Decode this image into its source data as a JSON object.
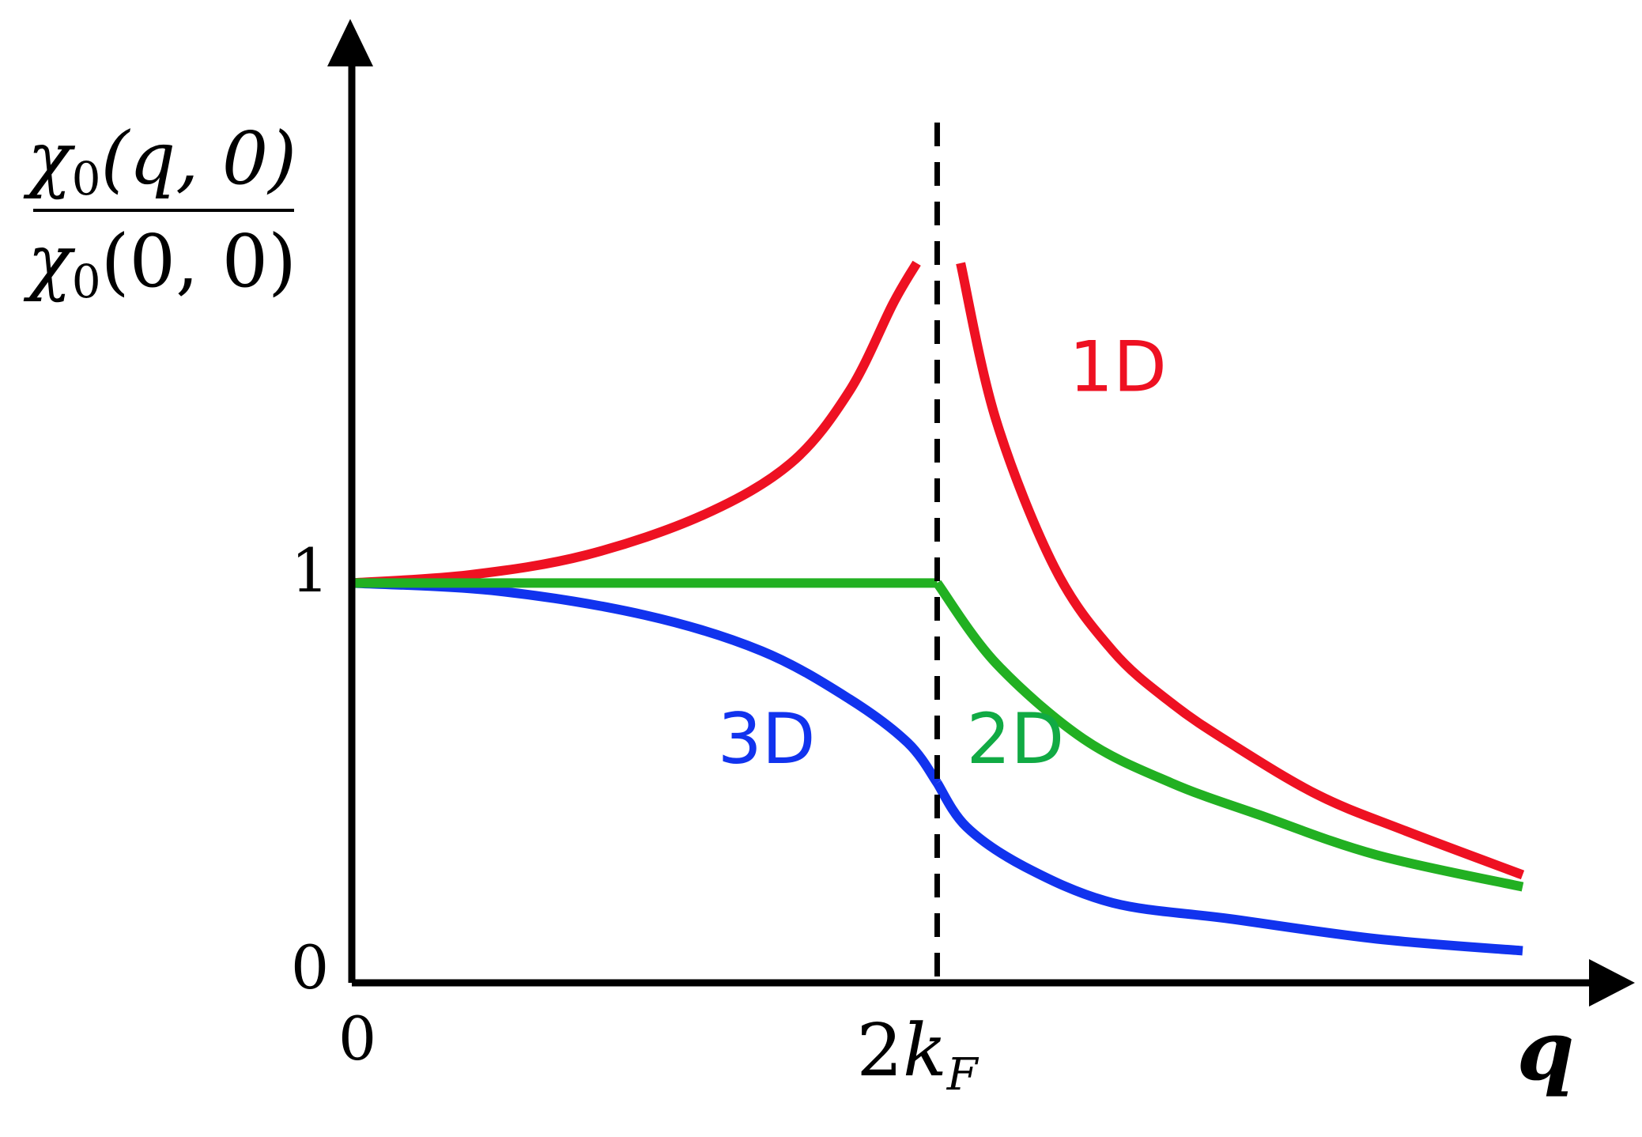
{
  "chart_data": {
    "type": "line",
    "title": "",
    "xlabel": "q",
    "ylabel": {
      "numerator": {
        "chi": "χ",
        "sub": "0",
        "args": "(q, 0)"
      },
      "denominator": {
        "chi": "χ",
        "sub": "0",
        "args": "(0, 0)"
      }
    },
    "x_ticks": [
      {
        "value": 0,
        "label": "0"
      },
      {
        "value": 2,
        "label": "2",
        "label_sym": "k",
        "label_sub": "F"
      }
    ],
    "y_ticks": [
      {
        "value": 0,
        "label": "0"
      },
      {
        "value": 1,
        "label": "1"
      }
    ],
    "xlim": [
      0,
      4.2
    ],
    "ylim": [
      0,
      2.3
    ],
    "reference_line": {
      "x": 2,
      "style": "dashed"
    },
    "grid": false,
    "series": [
      {
        "name": "1D",
        "color": "#ee1122",
        "segments": [
          {
            "x": [
              0,
              0.4,
              0.8,
              1.2,
              1.5,
              1.7,
              1.85,
              1.93
            ],
            "y": [
              1.0,
              1.02,
              1.07,
              1.17,
              1.3,
              1.48,
              1.7,
              1.8
            ]
          },
          {
            "x": [
              2.08,
              2.2,
              2.4,
              2.6,
              2.8,
              3.0,
              3.3,
              3.6,
              4.0
            ],
            "y": [
              1.8,
              1.41,
              1.04,
              0.83,
              0.7,
              0.6,
              0.47,
              0.38,
              0.27
            ]
          }
        ]
      },
      {
        "name": "2D",
        "color": "#22b022",
        "label_color": "#11aa44",
        "segments": [
          {
            "x": [
              0,
              2.0
            ],
            "y": [
              1.0,
              1.0
            ]
          },
          {
            "x": [
              2.0,
              2.2,
              2.5,
              2.8,
              3.1,
              3.5,
              4.0
            ],
            "y": [
              1.0,
              0.8,
              0.61,
              0.5,
              0.42,
              0.32,
              0.24
            ]
          }
        ]
      },
      {
        "name": "3D",
        "color": "#1133ee",
        "segments": [
          {
            "x": [
              0,
              0.5,
              1.0,
              1.4,
              1.7,
              1.9,
              2.0
            ],
            "y": [
              1.0,
              0.98,
              0.92,
              0.83,
              0.71,
              0.6,
              0.5
            ]
          },
          {
            "x": [
              2.0,
              2.1,
              2.3,
              2.6,
              3.0,
              3.5,
              4.0
            ],
            "y": [
              0.5,
              0.39,
              0.29,
              0.2,
              0.16,
              0.11,
              0.08
            ]
          }
        ]
      }
    ],
    "series_label_positions": [
      {
        "name": "1D",
        "x": 2.45,
        "y": 1.48
      },
      {
        "name": "2D",
        "x": 2.1,
        "y": 0.55
      },
      {
        "name": "3D",
        "x": 1.25,
        "y": 0.55
      }
    ]
  }
}
